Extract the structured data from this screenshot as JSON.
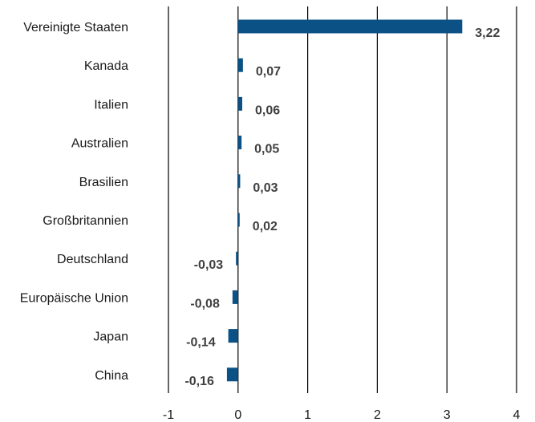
{
  "chart_data": {
    "type": "bar",
    "orientation": "horizontal",
    "categories": [
      "Vereinigte Staaten",
      "Kanada",
      "Italien",
      "Australien",
      "Brasilien",
      "Großbritannien",
      "Deutschland",
      "Europäische Union",
      "Japan",
      "China"
    ],
    "values": [
      3.22,
      0.07,
      0.06,
      0.05,
      0.03,
      0.02,
      -0.03,
      -0.08,
      -0.14,
      -0.16
    ],
    "value_labels": [
      "3,22",
      "0,07",
      "0,06",
      "0,05",
      "0,03",
      "0,02",
      "-0,03",
      "-0,08",
      "-0,14",
      "-0,16"
    ],
    "xlim": [
      -1,
      4
    ],
    "xticks": [
      -1,
      0,
      1,
      2,
      3,
      4
    ],
    "xtick_labels": [
      "-1",
      "0",
      "1",
      "2",
      "3",
      "4"
    ],
    "grid": "vertical",
    "bar_color": "#0b5185",
    "title": "",
    "xlabel": "",
    "ylabel": ""
  }
}
